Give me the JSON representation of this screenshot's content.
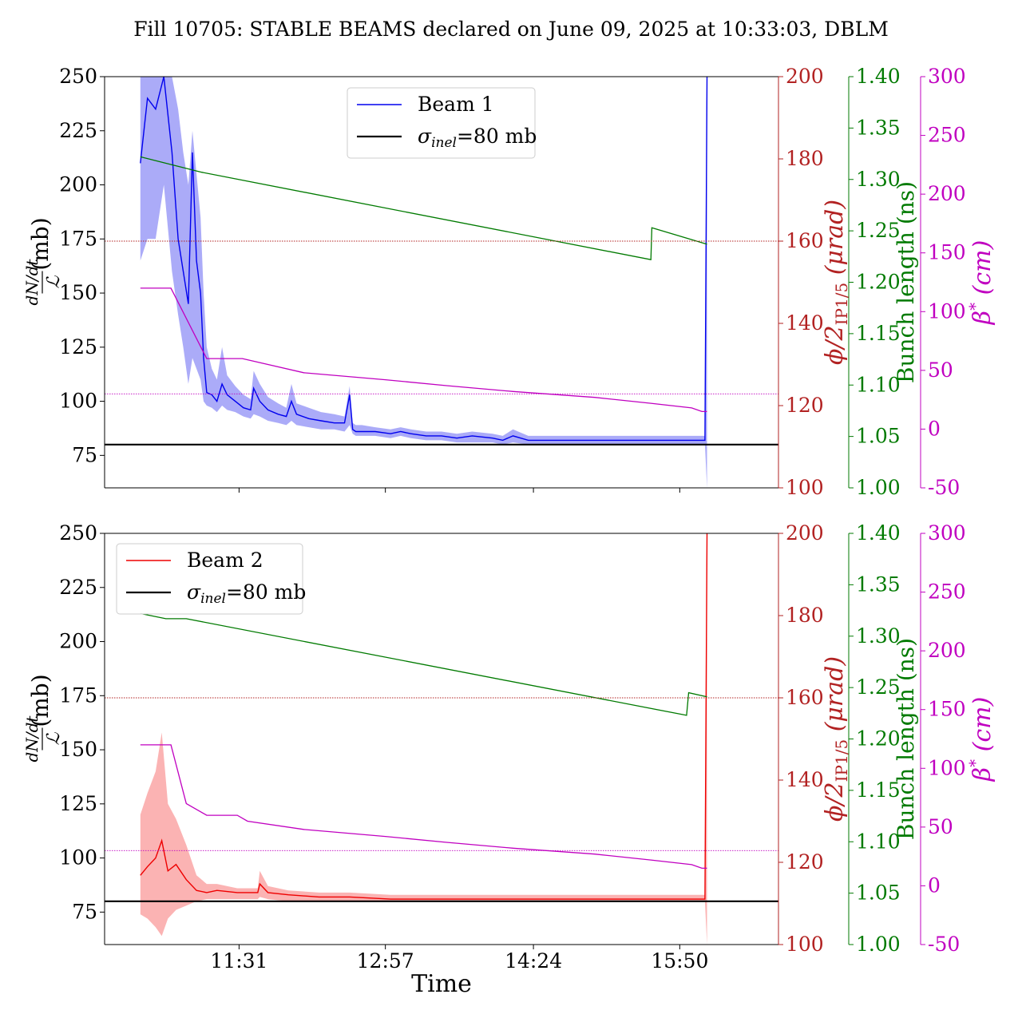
{
  "figure": {
    "title": "Fill 10705: STABLE BEAMS declared on June 09, 2025 at 10:33:03, DBLM",
    "xlabel": "Time"
  },
  "axes_labels": {
    "left_num": "dN/dt",
    "left_den": "ℒ",
    "left_unit": "(mb)",
    "phi_main": "ϕ/2",
    "phi_sub": "IP1/5",
    "phi_unit": "(μrad)",
    "bunch": "Bunch length (ns)",
    "beta": "β",
    "beta_sup": "*",
    "beta_unit": "(cm)"
  },
  "colors": {
    "beam1": "#0000ee",
    "beam1_band": "#8f8ff5",
    "beam2": "#ee0000",
    "beam2_band": "#f99a9a",
    "phi_axis": "#b22222",
    "bunch_axis": "#007a00",
    "beta_axis": "#c000c0",
    "sigma_line": "#000000"
  },
  "chart_data": [
    {
      "type": "line",
      "panel": "top",
      "legend_position": "upper-center",
      "legend": [
        {
          "label": "Beam 1",
          "style": "beam1"
        },
        {
          "label_sym": "σ",
          "label_sub": "inel",
          "label_rest": "=80 mb",
          "style": "sigma"
        }
      ],
      "x_ticks": [
        "11:31",
        "12:57",
        "14:24",
        "15:50"
      ],
      "x_tick_hours": [
        11.517,
        12.95,
        14.4,
        15.833
      ],
      "xlim_hours": [
        10.2,
        16.8
      ],
      "y_left": {
        "lim": [
          60,
          250
        ],
        "ticks": [
          75,
          100,
          125,
          150,
          175,
          200,
          225,
          250
        ]
      },
      "y_phi": {
        "lim": [
          100,
          200
        ],
        "ticks": [
          100,
          120,
          140,
          160,
          180,
          200
        ]
      },
      "y_bunch": {
        "lim": [
          1.0,
          1.4
        ],
        "ticks": [
          "1.00",
          "1.05",
          "1.10",
          "1.15",
          "1.20",
          "1.25",
          "1.30",
          "1.35",
          "1.40"
        ]
      },
      "y_beta": {
        "lim": [
          -50,
          300
        ],
        "ticks": [
          -50,
          0,
          50,
          100,
          150,
          200,
          250,
          300
        ]
      },
      "sigma_inel_mb": 80,
      "phi_dotted_urad": 160,
      "beta_dotted_cm": 30,
      "series": [
        {
          "name": "Beam 1",
          "axis": "left",
          "t": [
            10.55,
            10.62,
            10.7,
            10.78,
            10.86,
            10.92,
            10.97,
            11.02,
            11.06,
            11.1,
            11.14,
            11.17,
            11.2,
            11.25,
            11.3,
            11.35,
            11.4,
            11.48,
            11.56,
            11.63,
            11.66,
            11.72,
            11.8,
            11.9,
            11.98,
            12.03,
            12.08,
            12.2,
            12.32,
            12.45,
            12.55,
            12.6,
            12.63,
            12.66,
            12.72,
            12.85,
            13.0,
            13.1,
            13.2,
            13.35,
            13.5,
            13.65,
            13.8,
            14.0,
            14.1,
            14.2,
            14.35,
            14.5,
            14.8,
            15.1,
            15.4,
            15.7,
            15.9,
            16.0,
            16.05,
            16.08,
            16.1
          ],
          "values": [
            210,
            240,
            235,
            250,
            215,
            175,
            160,
            145,
            215,
            165,
            150,
            120,
            104,
            103,
            100,
            108,
            103,
            100,
            97,
            96,
            106,
            100,
            96,
            94,
            93,
            100,
            94,
            92,
            91,
            90,
            90,
            103,
            87,
            86,
            86,
            86,
            85,
            86,
            85,
            84,
            84,
            83,
            84,
            83,
            82,
            84,
            82,
            82,
            82,
            82,
            82,
            82,
            82,
            82,
            82,
            82,
            250
          ],
          "band_low": [
            165,
            175,
            175,
            200,
            160,
            140,
            125,
            108,
            120,
            115,
            110,
            100,
            98,
            97,
            95,
            98,
            96,
            95,
            93,
            92,
            94,
            93,
            91,
            90,
            89,
            91,
            89,
            88,
            87,
            87,
            86,
            89,
            85,
            84,
            84,
            84,
            83,
            84,
            83,
            82,
            82,
            81,
            81,
            81,
            80,
            81,
            80,
            80,
            80,
            80,
            80,
            80,
            80,
            80,
            80,
            80,
            60
          ],
          "band_high": [
            250,
            250,
            250,
            250,
            250,
            235,
            215,
            200,
            225,
            205,
            185,
            150,
            125,
            115,
            110,
            125,
            112,
            107,
            103,
            101,
            114,
            108,
            102,
            99,
            97,
            108,
            99,
            97,
            95,
            94,
            93,
            107,
            90,
            89,
            89,
            88,
            87,
            88,
            87,
            86,
            86,
            85,
            86,
            85,
            84,
            87,
            84,
            84,
            84,
            84,
            84,
            84,
            84,
            84,
            84,
            84,
            250
          ]
        },
        {
          "name": "",
          "axis": "bunch",
          "t": [
            10.55,
            11.15,
            15.55,
            15.56,
            16.1
          ],
          "values": [
            1.322,
            1.307,
            1.222,
            1.253,
            1.237
          ]
        },
        {
          "name": "",
          "axis": "beta",
          "t": [
            10.55,
            10.85,
            11.2,
            11.55,
            11.8,
            12.15,
            12.95,
            13.55,
            14.2,
            15.0,
            15.55,
            15.95,
            16.05,
            16.1
          ],
          "values": [
            120,
            120,
            60,
            60,
            55,
            48,
            42,
            37,
            32,
            27,
            22,
            18,
            15,
            15
          ]
        }
      ]
    },
    {
      "type": "line",
      "panel": "bottom",
      "legend_position": "upper-left",
      "legend": [
        {
          "label": "Beam 2",
          "style": "beam2"
        },
        {
          "label_sym": "σ",
          "label_sub": "inel",
          "label_rest": "=80 mb",
          "style": "sigma"
        }
      ],
      "x_ticks": [
        "11:31",
        "12:57",
        "14:24",
        "15:50"
      ],
      "x_tick_hours": [
        11.517,
        12.95,
        14.4,
        15.833
      ],
      "xlim_hours": [
        10.2,
        16.8
      ],
      "y_left": {
        "lim": [
          60,
          250
        ],
        "ticks": [
          75,
          100,
          125,
          150,
          175,
          200,
          225,
          250
        ]
      },
      "y_phi": {
        "lim": [
          100,
          200
        ],
        "ticks": [
          100,
          120,
          140,
          160,
          180,
          200
        ]
      },
      "y_bunch": {
        "lim": [
          1.0,
          1.4
        ],
        "ticks": [
          "1.00",
          "1.05",
          "1.10",
          "1.15",
          "1.20",
          "1.25",
          "1.30",
          "1.35",
          "1.40"
        ]
      },
      "y_beta": {
        "lim": [
          -50,
          300
        ],
        "ticks": [
          -50,
          0,
          50,
          100,
          150,
          200,
          250,
          300
        ]
      },
      "sigma_inel_mb": 80,
      "phi_dotted_urad": 160,
      "beta_dotted_cm": 30,
      "series": [
        {
          "name": "Beam 2",
          "axis": "left",
          "t": [
            10.55,
            10.62,
            10.7,
            10.76,
            10.82,
            10.9,
            11.0,
            11.1,
            11.2,
            11.3,
            11.5,
            11.7,
            11.72,
            11.8,
            12.0,
            12.3,
            12.6,
            13.0,
            13.5,
            14.0,
            14.4,
            15.0,
            15.5,
            16.0,
            16.08,
            16.1
          ],
          "values": [
            92,
            96,
            100,
            108,
            94,
            97,
            90,
            85,
            84,
            85,
            84,
            84,
            88,
            84,
            83,
            82,
            82,
            81,
            81,
            81,
            81,
            81,
            81,
            81,
            81,
            250
          ],
          "band_low": [
            74,
            72,
            68,
            64,
            72,
            76,
            78,
            80,
            81,
            81,
            81,
            81,
            82,
            81,
            80,
            80,
            80,
            80,
            80,
            80,
            80,
            80,
            80,
            80,
            80,
            60
          ],
          "band_high": [
            120,
            130,
            140,
            158,
            125,
            118,
            106,
            92,
            88,
            88,
            86,
            86,
            94,
            87,
            85,
            84,
            84,
            83,
            83,
            83,
            83,
            83,
            83,
            83,
            83,
            250
          ]
        },
        {
          "name": "",
          "axis": "bunch",
          "t": [
            10.55,
            10.8,
            11.0,
            15.9,
            15.92,
            16.1
          ],
          "values": [
            1.322,
            1.317,
            1.317,
            1.223,
            1.245,
            1.241
          ]
        },
        {
          "name": "",
          "axis": "beta",
          "t": [
            10.55,
            10.85,
            11.0,
            11.2,
            11.5,
            11.6,
            12.15,
            12.95,
            13.55,
            14.2,
            15.0,
            15.55,
            15.95,
            16.05,
            16.1
          ],
          "values": [
            120,
            120,
            70,
            60,
            60,
            55,
            48,
            42,
            37,
            32,
            27,
            22,
            18,
            15,
            15
          ]
        }
      ]
    }
  ]
}
